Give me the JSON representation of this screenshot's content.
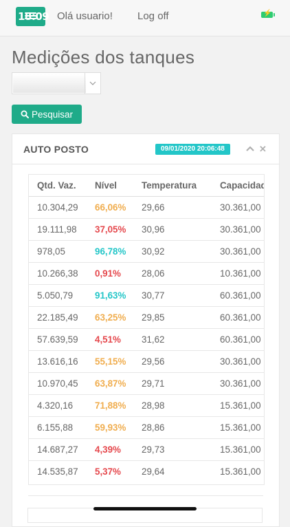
{
  "topbar": {
    "time": "18:09",
    "greeting": "Olá usuario!",
    "logoff": "Log off"
  },
  "page": {
    "title": "Medições dos tanques",
    "select_value": "",
    "search_label": "Pesquisar"
  },
  "panel": {
    "title": "AUTO POSTO",
    "timestamp": "09/01/2020 20:06:48"
  },
  "table": {
    "headers": [
      "Qtd. Vaz.",
      "Nível",
      "Temperatura",
      "Capacidade"
    ],
    "rows": [
      {
        "qtd": "10.304,29",
        "nivel": "66,06%",
        "temp": "29,66",
        "cap": "30.361,00",
        "color": "#f0ad4e"
      },
      {
        "qtd": "19.111,98",
        "nivel": "37,05%",
        "temp": "30,96",
        "cap": "30.361,00",
        "color": "#e5484d"
      },
      {
        "qtd": "978,05",
        "nivel": "96,78%",
        "temp": "30,92",
        "cap": "30.361,00",
        "color": "#23c6c8"
      },
      {
        "qtd": "10.266,38",
        "nivel": "0,91%",
        "temp": "28,06",
        "cap": "10.361,00",
        "color": "#e5484d"
      },
      {
        "qtd": "5.050,79",
        "nivel": "91,63%",
        "temp": "30,77",
        "cap": "60.361,00",
        "color": "#23c6c8"
      },
      {
        "qtd": "22.185,49",
        "nivel": "63,25%",
        "temp": "29,85",
        "cap": "60.361,00",
        "color": "#f0ad4e"
      },
      {
        "qtd": "57.639,59",
        "nivel": "4,51%",
        "temp": "31,62",
        "cap": "60.361,00",
        "color": "#e5484d"
      },
      {
        "qtd": "13.616,16",
        "nivel": "55,15%",
        "temp": "29,56",
        "cap": "30.361,00",
        "color": "#f0ad4e"
      },
      {
        "qtd": "10.970,45",
        "nivel": "63,87%",
        "temp": "29,71",
        "cap": "30.361,00",
        "color": "#f0ad4e"
      },
      {
        "qtd": "4.320,16",
        "nivel": "71,88%",
        "temp": "28,98",
        "cap": "15.361,00",
        "color": "#f0ad4e"
      },
      {
        "qtd": "6.155,88",
        "nivel": "59,93%",
        "temp": "28,86",
        "cap": "15.361,00",
        "color": "#f0ad4e"
      },
      {
        "qtd": "14.687,27",
        "nivel": "4,39%",
        "temp": "29,73",
        "cap": "15.361,00",
        "color": "#e5484d"
      },
      {
        "qtd": "14.535,87",
        "nivel": "5,37%",
        "temp": "29,64",
        "cap": "15.361,00",
        "color": "#e5484d"
      }
    ]
  },
  "icons": {
    "menu": "hamburger-icon",
    "search": "search-icon",
    "collapse": "chevron-up-icon",
    "close": "close-icon",
    "battery": "battery-icon"
  },
  "colors": {
    "accent": "#1fab89",
    "badge": "#23c6c8",
    "warning": "#f0ad4e",
    "danger": "#e5484d",
    "info": "#23c6c8"
  }
}
